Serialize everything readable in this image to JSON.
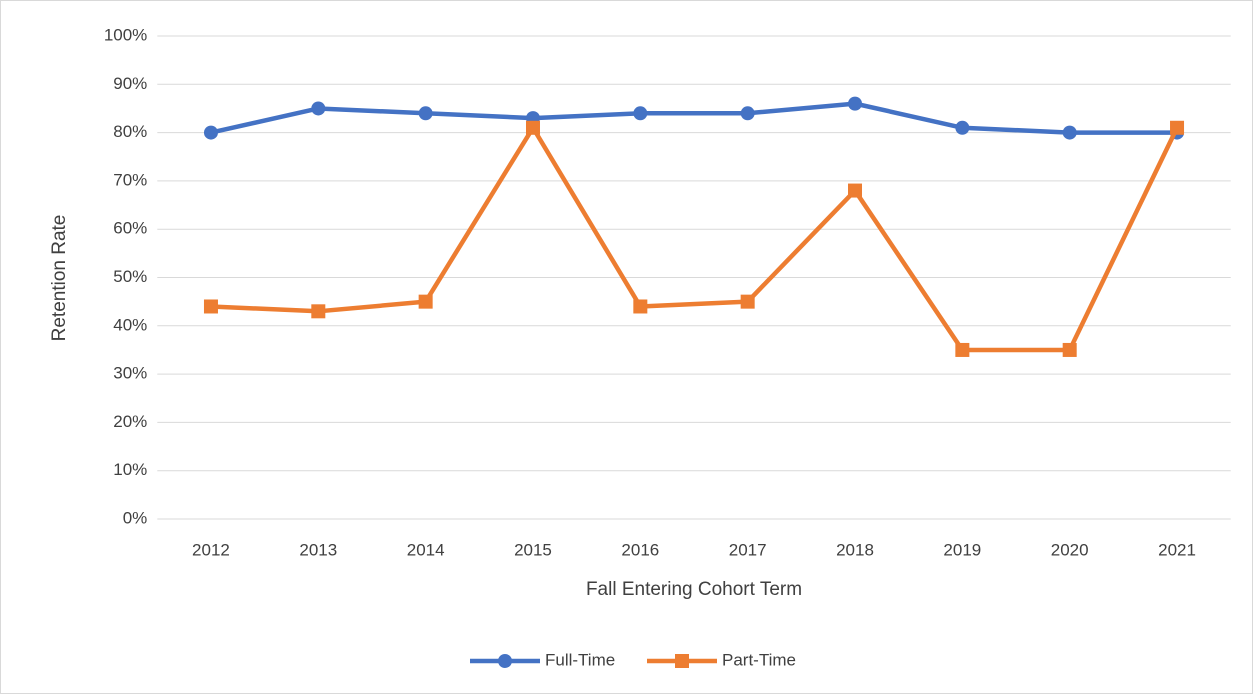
{
  "chart_data": {
    "type": "line",
    "x_label": "Fall Entering Cohort Term",
    "y_label": "Retention Rate",
    "categories": [
      "2012",
      "2013",
      "2014",
      "2015",
      "2016",
      "2017",
      "2018",
      "2019",
      "2020",
      "2021"
    ],
    "series": [
      {
        "name": "Full-Time",
        "color": "#4472c4",
        "marker": "circle",
        "values": [
          80,
          85,
          84,
          83,
          84,
          84,
          86,
          81,
          80,
          80
        ]
      },
      {
        "name": "Part-Time",
        "color": "#ed7d31",
        "marker": "square",
        "values": [
          44,
          43,
          45,
          81,
          44,
          45,
          68,
          35,
          35,
          81
        ]
      }
    ],
    "ylim": [
      0,
      100
    ],
    "yticks": [
      {
        "value": 0,
        "label": "0%"
      },
      {
        "value": 10,
        "label": "10%"
      },
      {
        "value": 20,
        "label": "20%"
      },
      {
        "value": 30,
        "label": "30%"
      },
      {
        "value": 40,
        "label": "40%"
      },
      {
        "value": 50,
        "label": "50%"
      },
      {
        "value": 60,
        "label": "60%"
      },
      {
        "value": 70,
        "label": "70%"
      },
      {
        "value": 80,
        "label": "80%"
      },
      {
        "value": 90,
        "label": "90%"
      },
      {
        "value": 100,
        "label": "100%"
      }
    ],
    "grid": true,
    "legend": "bottom"
  }
}
